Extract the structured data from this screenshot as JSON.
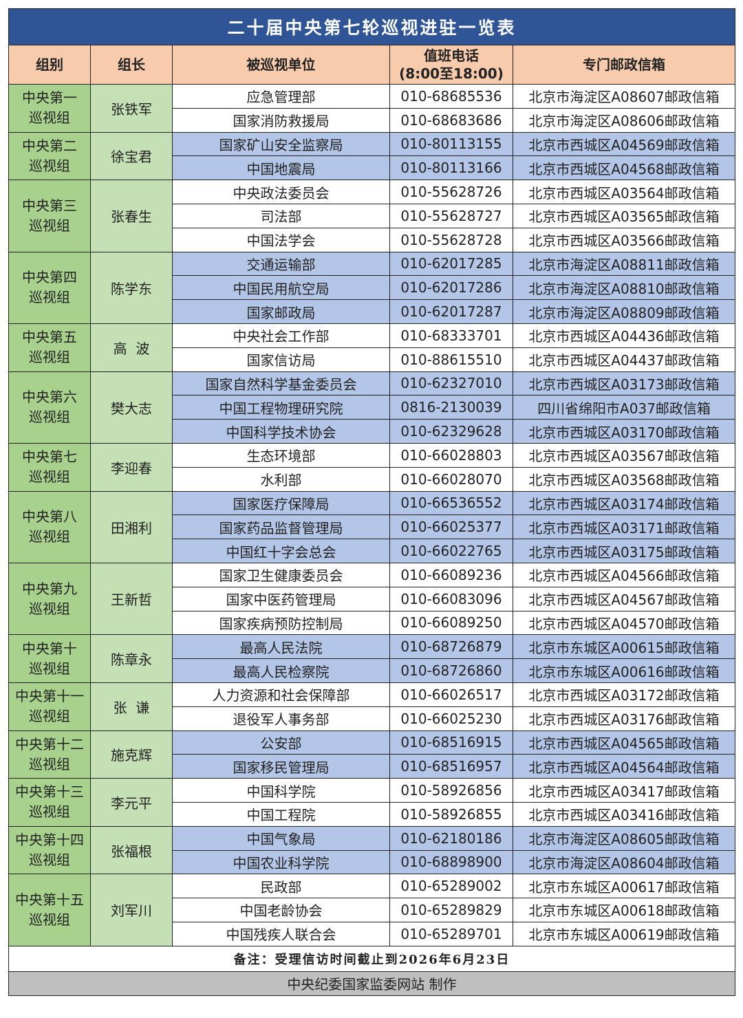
{
  "title": "二十届中央第七轮巡视进驻一览表",
  "colors": {
    "title_bg": "#2F5597",
    "header_bg": "#F8CBAD",
    "group_bg": "#A9D18E",
    "leader_bg": "#C5E0B4",
    "alt_row_bg": "#B4C6E7",
    "footer_bg": "#BFBFBF"
  },
  "headers": {
    "group": "组别",
    "leader": "组长",
    "unit": "被巡视单位",
    "phone_line1": "值班电话",
    "phone_line2": "(8:00至18:00)",
    "mailbox": "专门邮政信箱"
  },
  "groups": [
    {
      "name1": "中央第一",
      "name2": "巡视组",
      "leader": "张铁军",
      "rows": [
        [
          "应急管理部",
          "010-68685536",
          "北京市海淀区A08607邮政信箱"
        ],
        [
          "国家消防救援局",
          "010-68683686",
          "北京市海淀区A08606邮政信箱"
        ]
      ]
    },
    {
      "name1": "中央第二",
      "name2": "巡视组",
      "leader": "徐宝君",
      "rows": [
        [
          "国家矿山安全监察局",
          "010-80113155",
          "北京市西城区A04569邮政信箱"
        ],
        [
          "中国地震局",
          "010-80113166",
          "北京市西城区A04568邮政信箱"
        ]
      ]
    },
    {
      "name1": "中央第三",
      "name2": "巡视组",
      "leader": "张春生",
      "rows": [
        [
          "中央政法委员会",
          "010-55628726",
          "北京市西城区A03564邮政信箱"
        ],
        [
          "司法部",
          "010-55628727",
          "北京市西城区A03565邮政信箱"
        ],
        [
          "中国法学会",
          "010-55628728",
          "北京市西城区A03566邮政信箱"
        ]
      ]
    },
    {
      "name1": "中央第四",
      "name2": "巡视组",
      "leader": "陈学东",
      "rows": [
        [
          "交通运输部",
          "010-62017285",
          "北京市海淀区A08811邮政信箱"
        ],
        [
          "中国民用航空局",
          "010-62017286",
          "北京市海淀区A08810邮政信箱"
        ],
        [
          "国家邮政局",
          "010-62017287",
          "北京市海淀区A08809邮政信箱"
        ]
      ]
    },
    {
      "name1": "中央第五",
      "name2": "巡视组",
      "leader": "高  波",
      "rows": [
        [
          "中央社会工作部",
          "010-68333701",
          "北京市西城区A04436邮政信箱"
        ],
        [
          "国家信访局",
          "010-88615510",
          "北京市西城区A04437邮政信箱"
        ]
      ]
    },
    {
      "name1": "中央第六",
      "name2": "巡视组",
      "leader": "樊大志",
      "rows": [
        [
          "国家自然科学基金委员会",
          "010-62327010",
          "北京市西城区A03173邮政信箱"
        ],
        [
          "中国工程物理研究院",
          "0816-2130039",
          "四川省绵阳市A037邮政信箱"
        ],
        [
          "中国科学技术协会",
          "010-62329628",
          "北京市西城区A03170邮政信箱"
        ]
      ]
    },
    {
      "name1": "中央第七",
      "name2": "巡视组",
      "leader": "李迎春",
      "rows": [
        [
          "生态环境部",
          "010-66028803",
          "北京市西城区A03567邮政信箱"
        ],
        [
          "水利部",
          "010-66028070",
          "北京市西城区A03568邮政信箱"
        ]
      ]
    },
    {
      "name1": "中央第八",
      "name2": "巡视组",
      "leader": "田湘利",
      "rows": [
        [
          "国家医疗保障局",
          "010-66536552",
          "北京市西城区A03174邮政信箱"
        ],
        [
          "国家药品监督管理局",
          "010-66025377",
          "北京市西城区A03171邮政信箱"
        ],
        [
          "中国红十字会总会",
          "010-66022765",
          "北京市西城区A03175邮政信箱"
        ]
      ]
    },
    {
      "name1": "中央第九",
      "name2": "巡视组",
      "leader": "王新哲",
      "rows": [
        [
          "国家卫生健康委员会",
          "010-66089236",
          "北京市西城区A04566邮政信箱"
        ],
        [
          "国家中医药管理局",
          "010-66083096",
          "北京市西城区A04567邮政信箱"
        ],
        [
          "国家疾病预防控制局",
          "010-66089250",
          "北京市西城区A04570邮政信箱"
        ]
      ]
    },
    {
      "name1": "中央第十",
      "name2": "巡视组",
      "leader": "陈章永",
      "rows": [
        [
          "最高人民法院",
          "010-68726879",
          "北京市东城区A00615邮政信箱"
        ],
        [
          "最高人民检察院",
          "010-68726860",
          "北京市东城区A00616邮政信箱"
        ]
      ]
    },
    {
      "name1": "中央第十一",
      "name2": "巡视组",
      "leader": "张  谦",
      "rows": [
        [
          "人力资源和社会保障部",
          "010-66026517",
          "北京市西城区A03172邮政信箱"
        ],
        [
          "退役军人事务部",
          "010-66025230",
          "北京市西城区A03176邮政信箱"
        ]
      ]
    },
    {
      "name1": "中央第十二",
      "name2": "巡视组",
      "leader": "施克辉",
      "rows": [
        [
          "公安部",
          "010-68516915",
          "北京市西城区A04565邮政信箱"
        ],
        [
          "国家移民管理局",
          "010-68516957",
          "北京市西城区A04564邮政信箱"
        ]
      ]
    },
    {
      "name1": "中央第十三",
      "name2": "巡视组",
      "leader": "李元平",
      "rows": [
        [
          "中国科学院",
          "010-58926856",
          "北京市西城区A03417邮政信箱"
        ],
        [
          "中国工程院",
          "010-58926855",
          "北京市西城区A03416邮政信箱"
        ]
      ]
    },
    {
      "name1": "中央第十四",
      "name2": "巡视组",
      "leader": "张福根",
      "rows": [
        [
          "中国气象局",
          "010-62180186",
          "北京市海淀区A08605邮政信箱"
        ],
        [
          "中国农业科学院",
          "010-68898900",
          "北京市海淀区A08604邮政信箱"
        ]
      ]
    },
    {
      "name1": "中央第十五",
      "name2": "巡视组",
      "leader": "刘军川",
      "rows": [
        [
          "民政部",
          "010-65289002",
          "北京市东城区A00617邮政信箱"
        ],
        [
          "中国老龄协会",
          "010-65289829",
          "北京市东城区A00618邮政信箱"
        ],
        [
          "中国残疾人联合会",
          "010-65289701",
          "北京市东城区A00619邮政信箱"
        ]
      ]
    }
  ],
  "note": "备注：受理信访时间截止到2026年6月23日",
  "footer": "中央纪委国家监委网站 制作"
}
